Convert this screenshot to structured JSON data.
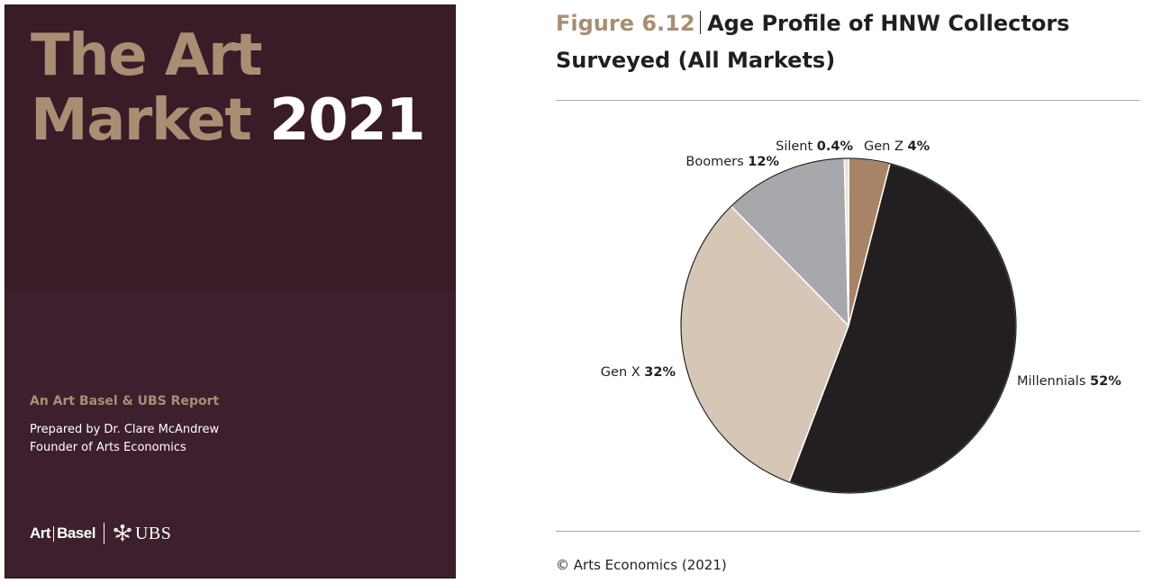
{
  "cover": {
    "title_line1": "The Art",
    "title_line2_tan": "Market",
    "title_line2_white": "2021",
    "subtitle": "An Art Basel & UBS Report",
    "prepared_by": "Prepared by Dr. Clare McAndrew",
    "founder": "Founder of Arts Economics",
    "logo_art": "Art",
    "logo_basel": "Basel",
    "logo_ubs": "UBS",
    "background_color": "#3e1f2d",
    "accent_color": "#a88f73",
    "ubs_icon": "keys-icon"
  },
  "figure": {
    "label": "Figure 6.12",
    "title_line1": "Age Profile of HNW Collectors",
    "title_line2": "Surveyed (All Markets)",
    "source": "© Arts Economics (2021)"
  },
  "chart_data": {
    "type": "pie",
    "title": "Age Profile of HNW Collectors Surveyed (All Markets)",
    "start": "12 o'clock",
    "direction": "clockwise",
    "slices": [
      {
        "name": "Gen Z",
        "value": 4,
        "label": "4%",
        "color": "#a88366"
      },
      {
        "name": "Millennials",
        "value": 52,
        "label": "52%",
        "color": "#231f20"
      },
      {
        "name": "Gen X",
        "value": 32,
        "label": "32%",
        "color": "#d5c6b6"
      },
      {
        "name": "Boomers",
        "value": 12,
        "label": "12%",
        "color": "#a7a8ab"
      },
      {
        "name": "Silent",
        "value": 0.4,
        "label": "0.4%",
        "color": "#e3e0dd"
      }
    ]
  }
}
